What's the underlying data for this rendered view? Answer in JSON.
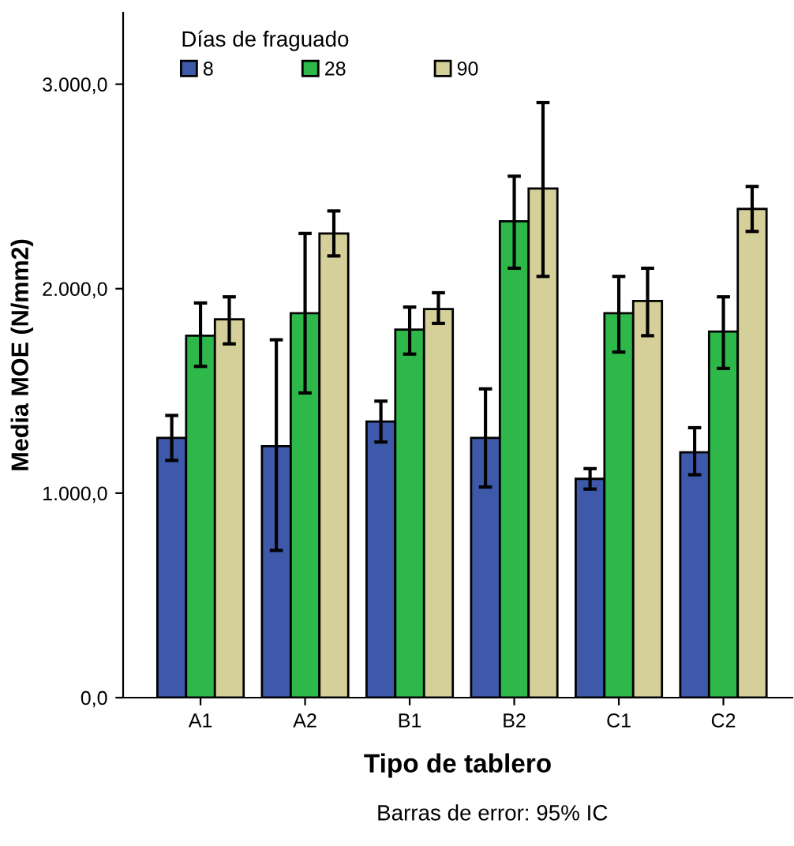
{
  "chart_data": {
    "type": "bar",
    "xlabel": "Tipo de tablero",
    "ylabel": "Media MOE (N/mm2)",
    "legend_title": "Días de fraguado",
    "legend": "top left",
    "grid": false,
    "categories": [
      "A1",
      "A2",
      "B1",
      "B2",
      "C1",
      "C2"
    ],
    "ylim": [
      0,
      3350
    ],
    "yticks": [
      {
        "value": 0,
        "label": "0,0"
      },
      {
        "value": 1000,
        "label": "1.000,0"
      },
      {
        "value": 2000,
        "label": "2.000,0"
      },
      {
        "value": 3000,
        "label": "3.000,0"
      }
    ],
    "series": [
      {
        "name": "8",
        "color": "#3f59aa",
        "values": [
          1270,
          1230,
          1350,
          1270,
          1070,
          1200
        ],
        "errors": [
          [
            1160,
            1380
          ],
          [
            720,
            1750
          ],
          [
            1250,
            1450
          ],
          [
            1030,
            1510
          ],
          [
            1020,
            1120
          ],
          [
            1090,
            1320
          ]
        ]
      },
      {
        "name": "28",
        "color": "#2eb84a",
        "values": [
          1770,
          1880,
          1800,
          2330,
          1880,
          1790
        ],
        "errors": [
          [
            1620,
            1930
          ],
          [
            1490,
            2270
          ],
          [
            1680,
            1910
          ],
          [
            2100,
            2550
          ],
          [
            1690,
            2060
          ],
          [
            1610,
            1960
          ]
        ]
      },
      {
        "name": "90",
        "color": "#d5cf9a",
        "values": [
          1850,
          2270,
          1900,
          2490,
          1940,
          2390
        ],
        "errors": [
          [
            1730,
            1960
          ],
          [
            2160,
            2380
          ],
          [
            1830,
            1980
          ],
          [
            2060,
            2910
          ],
          [
            1770,
            2100
          ],
          [
            2280,
            2500
          ]
        ]
      }
    ],
    "annotations": [
      "Barras de error: 95% IC"
    ]
  }
}
